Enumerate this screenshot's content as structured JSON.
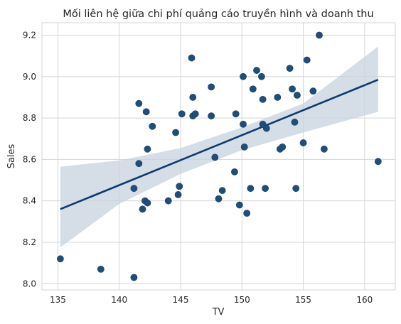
{
  "chart_data": {
    "type": "scatter",
    "title": "Mối liên hệ giữa chi phí quảng cáo truyền hình và doanh thu",
    "xlabel": "TV",
    "ylabel": "Sales",
    "xlim": [
      133.7,
      162.5
    ],
    "ylim": [
      7.97,
      9.26
    ],
    "x_ticks": [
      "135",
      "140",
      "145",
      "150",
      "155",
      "160"
    ],
    "y_ticks": [
      "8.0",
      "8.2",
      "8.4",
      "8.6",
      "8.8",
      "9.0",
      "9.2"
    ],
    "grid": true,
    "colors": {
      "points": "#1f4e79",
      "line": "#0b3a6e",
      "band": "#c7d2df",
      "grid": "#d5d5d5"
    },
    "points": [
      {
        "x": 135.2,
        "y": 8.12
      },
      {
        "x": 138.5,
        "y": 8.07
      },
      {
        "x": 141.2,
        "y": 8.03
      },
      {
        "x": 141.2,
        "y": 8.46
      },
      {
        "x": 141.6,
        "y": 8.58
      },
      {
        "x": 141.6,
        "y": 8.87
      },
      {
        "x": 141.9,
        "y": 8.36
      },
      {
        "x": 142.1,
        "y": 8.4
      },
      {
        "x": 142.2,
        "y": 8.83
      },
      {
        "x": 142.3,
        "y": 8.65
      },
      {
        "x": 142.3,
        "y": 8.39
      },
      {
        "x": 142.7,
        "y": 8.76
      },
      {
        "x": 144.0,
        "y": 8.4
      },
      {
        "x": 144.6,
        "y": 8.73
      },
      {
        "x": 144.8,
        "y": 8.43
      },
      {
        "x": 144.9,
        "y": 8.47
      },
      {
        "x": 145.1,
        "y": 8.82
      },
      {
        "x": 145.9,
        "y": 9.09
      },
      {
        "x": 146.0,
        "y": 8.9
      },
      {
        "x": 146.0,
        "y": 8.81
      },
      {
        "x": 146.2,
        "y": 8.82
      },
      {
        "x": 147.5,
        "y": 8.95
      },
      {
        "x": 147.5,
        "y": 8.81
      },
      {
        "x": 147.8,
        "y": 8.61
      },
      {
        "x": 148.1,
        "y": 8.41
      },
      {
        "x": 148.4,
        "y": 8.45
      },
      {
        "x": 149.4,
        "y": 8.54
      },
      {
        "x": 149.5,
        "y": 8.82
      },
      {
        "x": 149.8,
        "y": 8.38
      },
      {
        "x": 150.1,
        "y": 9.0
      },
      {
        "x": 150.1,
        "y": 8.77
      },
      {
        "x": 150.2,
        "y": 8.66
      },
      {
        "x": 150.4,
        "y": 8.34
      },
      {
        "x": 150.7,
        "y": 8.46
      },
      {
        "x": 150.9,
        "y": 8.94
      },
      {
        "x": 151.2,
        "y": 9.03
      },
      {
        "x": 151.6,
        "y": 9.0
      },
      {
        "x": 151.7,
        "y": 8.89
      },
      {
        "x": 151.7,
        "y": 8.77
      },
      {
        "x": 151.9,
        "y": 8.46
      },
      {
        "x": 152.0,
        "y": 8.75
      },
      {
        "x": 152.9,
        "y": 8.9
      },
      {
        "x": 153.1,
        "y": 8.65
      },
      {
        "x": 153.3,
        "y": 8.66
      },
      {
        "x": 153.9,
        "y": 9.04
      },
      {
        "x": 154.1,
        "y": 8.94
      },
      {
        "x": 154.3,
        "y": 8.78
      },
      {
        "x": 154.4,
        "y": 8.46
      },
      {
        "x": 154.5,
        "y": 8.91
      },
      {
        "x": 155.0,
        "y": 8.68
      },
      {
        "x": 155.3,
        "y": 9.08
      },
      {
        "x": 155.8,
        "y": 8.93
      },
      {
        "x": 156.3,
        "y": 9.2
      },
      {
        "x": 156.7,
        "y": 8.65
      },
      {
        "x": 161.1,
        "y": 8.59
      }
    ],
    "regression": {
      "x": [
        135.2,
        161.1
      ],
      "y": [
        8.36,
        8.985
      ],
      "ci_x": [
        135.2,
        140,
        145,
        150,
        155,
        161.1
      ],
      "ci_upper": [
        8.565,
        8.595,
        8.655,
        8.755,
        8.87,
        9.145
      ],
      "ci_lower": [
        8.175,
        8.385,
        8.53,
        8.645,
        8.73,
        8.83
      ]
    }
  }
}
